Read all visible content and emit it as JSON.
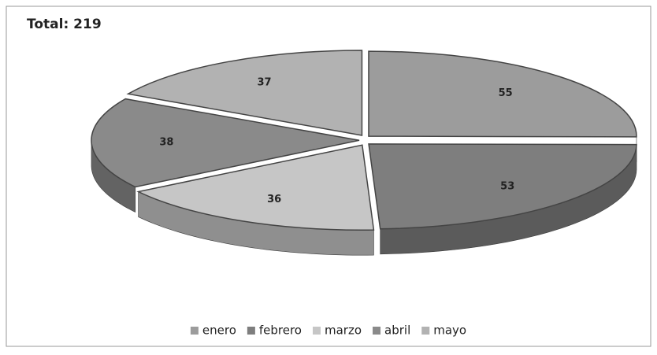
{
  "chart_data": {
    "type": "pie",
    "title": "Total: 219",
    "categories": [
      "enero",
      "febrero",
      "marzo",
      "abril",
      "mayo"
    ],
    "values": [
      55,
      53,
      36,
      38,
      37
    ],
    "colors": [
      "#9c9c9c",
      "#7e7e7e",
      "#c6c6c6",
      "#8a8a8a",
      "#b2b2b2"
    ],
    "legend": "bottom"
  }
}
